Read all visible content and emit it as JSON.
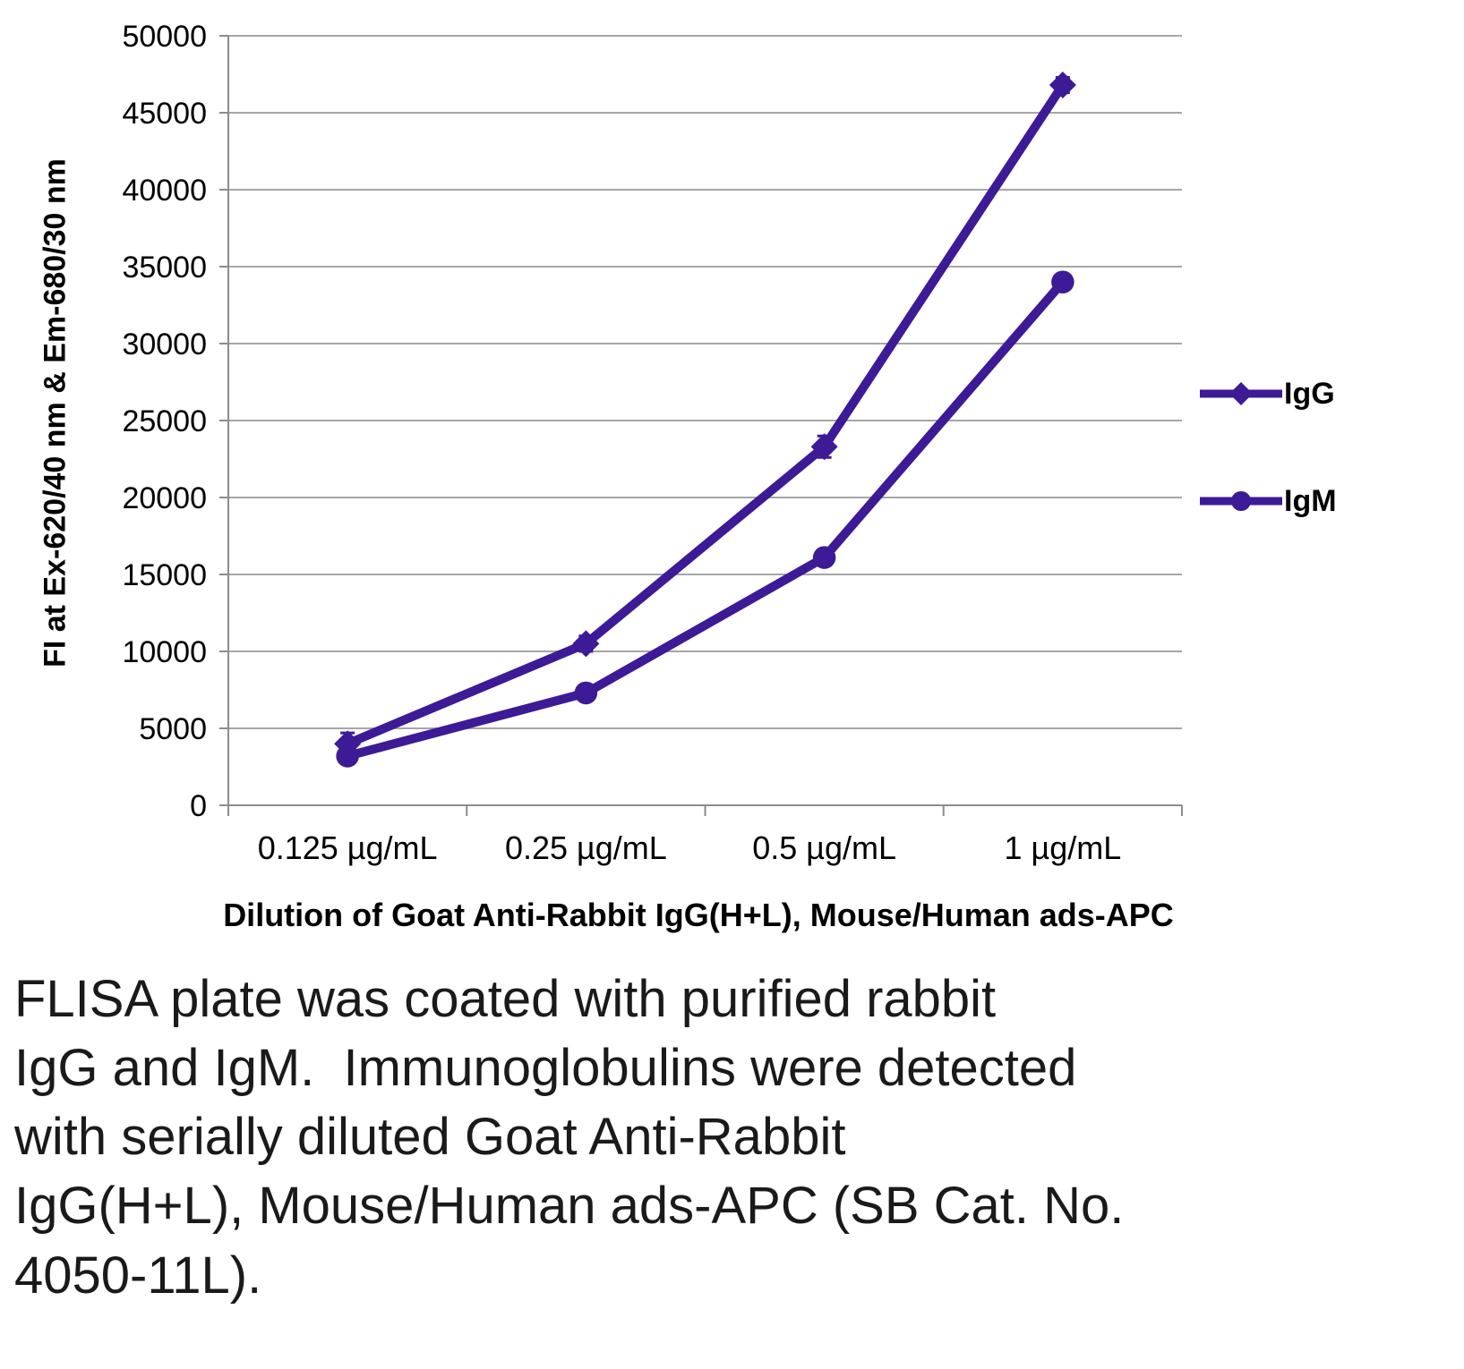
{
  "colors": {
    "series": "#3d1a96",
    "gridline": "#a6a6a6",
    "axis": "#8c8c8c",
    "text": "#000000",
    "caption_text": "#1a1a1a",
    "background": "#ffffff"
  },
  "chart_data": {
    "type": "line",
    "title": "",
    "xlabel": "Dilution of Goat Anti-Rabbit IgG(H+L), Mouse/Human ads-APC",
    "ylabel": "FI at Ex-620/40 nm & Em-680/30 nm",
    "categories": [
      "0.125 µg/mL",
      "0.25 µg/mL",
      "0.5 µg/mL",
      "1 µg/mL"
    ],
    "series": [
      {
        "name": "IgG",
        "marker": "diamond",
        "color": "#3d1a96",
        "values": [
          4000,
          10500,
          23300,
          46800
        ],
        "y_err": [
          700,
          500,
          700,
          500
        ]
      },
      {
        "name": "IgM",
        "marker": "circle",
        "color": "#3d1a96",
        "values": [
          3200,
          7300,
          16100,
          34000
        ],
        "y_err": [
          500,
          400,
          500,
          400
        ]
      }
    ],
    "ylim": [
      0,
      50000
    ],
    "ytick_step": 5000,
    "grid": "horizontal",
    "legend_position": "right"
  },
  "figure": {
    "caption_lines": [
      "FLISA plate was coated with purified rabbit",
      "IgG and IgM.  Immunoglobulins were detected",
      "with serially diluted Goat Anti-Rabbit",
      "IgG(H+L), Mouse/Human ads-APC (SB Cat. No.",
      "4050-11L)."
    ]
  }
}
